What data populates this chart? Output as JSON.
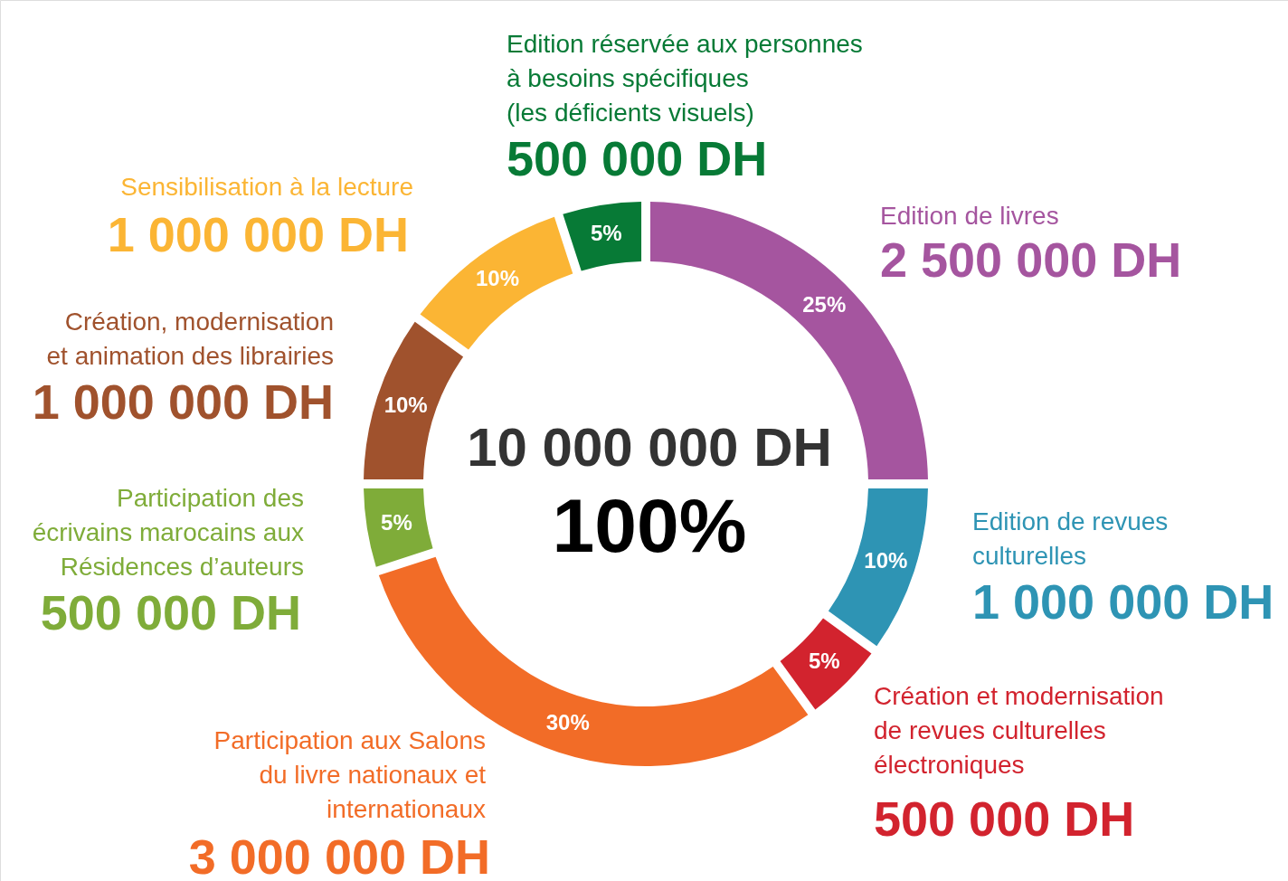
{
  "chart_data": {
    "type": "donut",
    "categories": [
      "Edition de livres",
      "Edition de revues\nculturelles",
      "Création et modernisation\nde revues culturelles\nélectroniques",
      "Participation aux Salons\ndu livre nationaux et\ninternationaux",
      "Participation des\nécrivains marocains aux\nRésidences d’auteurs",
      "Création, modernisation\net animation des librairies",
      "Sensibilisation à la lecture",
      "Edition réservée aux personnes\nà besoins spécifiques\n(les déficients visuels)"
    ],
    "values": [
      25,
      10,
      5,
      30,
      5,
      10,
      10,
      5
    ],
    "value_labels": [
      "25%",
      "10%",
      "5%",
      "30%",
      "5%",
      "10%",
      "10%",
      "5%"
    ],
    "colors": [
      "#a5559f",
      "#2e94b4",
      "#d2232e",
      "#f26c27",
      "#7fac39",
      "#a0522d",
      "#fbb534",
      "#077a36"
    ],
    "annotations": [
      "2 500 000 DH",
      "1 000 000 DH",
      "500 000 DH",
      "3 000 000 DH",
      "500 000 DH",
      "1 000 000 DH",
      "1 000 000 DH",
      "500 000 DH",
      "10 000 000 DH",
      "100%"
    ]
  }
}
